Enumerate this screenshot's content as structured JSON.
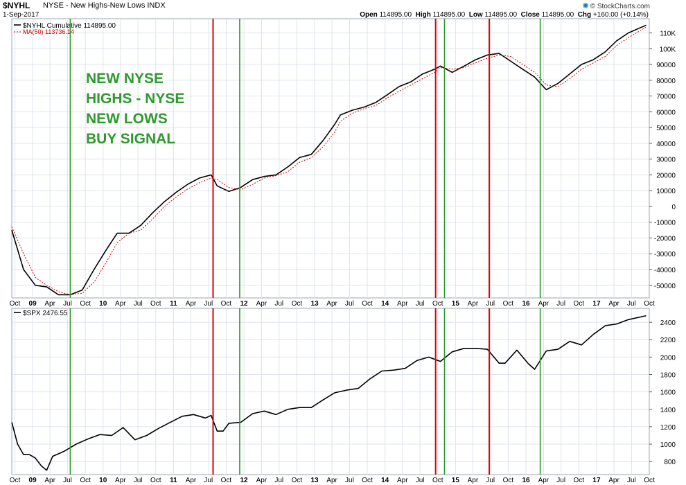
{
  "header": {
    "symbol": "$NYHL",
    "description": "NYSE - New Highs-New Lows INDX",
    "date": "1-Sep-2017",
    "credit": "© StockCharts.com",
    "open_label": "Open",
    "open": "114895.00",
    "high_label": "High",
    "high": "114895.00",
    "low_label": "Low",
    "low": "114895.00",
    "close_label": "Close",
    "close": "114895.00",
    "chg_label": "Chg",
    "chg": "+160.00 (+0.14%)"
  },
  "chart_data": [
    {
      "type": "line",
      "panel": "upper",
      "title": "",
      "annotation_lines": [
        "NEW NYSE",
        "HIGHS - NYSE",
        "NEW LOWS",
        "BUY SIGNAL"
      ],
      "annotation_color": "#2e9a2e",
      "ylim": [
        -58000,
        119000
      ],
      "y_tick_labels": [
        "110K",
        "100K",
        "90000",
        "80000",
        "70000",
        "60000",
        "50000",
        "40000",
        "30000",
        "20000",
        "10000",
        "0",
        "-10000",
        "-20000",
        "-30000",
        "-40000",
        "-50000"
      ],
      "y_tick_values": [
        110000,
        100000,
        90000,
        80000,
        70000,
        60000,
        50000,
        40000,
        30000,
        20000,
        10000,
        0,
        -10000,
        -20000,
        -30000,
        -40000,
        -50000
      ],
      "series": [
        {
          "name": "$NYHL Cumulative 114895.00",
          "color": "#000000",
          "x": [
            "2008-09",
            "2008-11",
            "2009-01",
            "2009-03",
            "2009-05",
            "2009-07",
            "2009-09",
            "2009-11",
            "2010-01",
            "2010-03",
            "2010-05",
            "2010-07",
            "2010-09",
            "2010-11",
            "2011-01",
            "2011-03",
            "2011-05",
            "2011-07",
            "2011-08",
            "2011-10",
            "2011-12",
            "2012-02",
            "2012-04",
            "2012-06",
            "2012-08",
            "2012-10",
            "2012-12",
            "2013-02",
            "2013-04",
            "2013-05",
            "2013-07",
            "2013-09",
            "2013-11",
            "2014-01",
            "2014-03",
            "2014-05",
            "2014-07",
            "2014-09",
            "2014-10",
            "2014-12",
            "2015-02",
            "2015-04",
            "2015-06",
            "2015-08",
            "2015-10",
            "2015-12",
            "2016-02",
            "2016-04",
            "2016-06",
            "2016-08",
            "2016-10",
            "2016-12",
            "2017-02",
            "2017-04",
            "2017-06",
            "2017-09"
          ],
          "y": [
            -15000,
            -40000,
            -50000,
            -51000,
            -56000,
            -56000,
            -53000,
            -40000,
            -28000,
            -17000,
            -17000,
            -12000,
            -4000,
            3000,
            9000,
            14000,
            18000,
            20000,
            13000,
            9500,
            12000,
            17000,
            19000,
            20000,
            25000,
            31000,
            33000,
            42000,
            52000,
            58000,
            61000,
            63000,
            66000,
            71000,
            76000,
            79000,
            84000,
            87000,
            89000,
            85000,
            89000,
            93000,
            96000,
            97000,
            92000,
            87000,
            82000,
            74000,
            78000,
            84000,
            90000,
            93000,
            98000,
            105000,
            110000,
            114895
          ]
        },
        {
          "name": "MA(50) 113736.14",
          "color": "#cc0000",
          "dashed": true,
          "x": [
            "2008-09",
            "2008-11",
            "2009-01",
            "2009-03",
            "2009-05",
            "2009-07",
            "2009-09",
            "2009-11",
            "2010-01",
            "2010-03",
            "2010-05",
            "2010-07",
            "2010-09",
            "2010-11",
            "2011-01",
            "2011-03",
            "2011-05",
            "2011-07",
            "2011-08",
            "2011-10",
            "2011-12",
            "2012-02",
            "2012-04",
            "2012-06",
            "2012-08",
            "2012-10",
            "2012-12",
            "2013-02",
            "2013-04",
            "2013-05",
            "2013-07",
            "2013-09",
            "2013-11",
            "2014-01",
            "2014-03",
            "2014-05",
            "2014-07",
            "2014-09",
            "2014-10",
            "2014-12",
            "2015-02",
            "2015-04",
            "2015-06",
            "2015-08",
            "2015-10",
            "2015-12",
            "2016-02",
            "2016-04",
            "2016-06",
            "2016-08",
            "2016-10",
            "2016-12",
            "2017-02",
            "2017-04",
            "2017-06",
            "2017-09"
          ],
          "y": [
            -13000,
            -30000,
            -45000,
            -50000,
            -54000,
            -56000,
            -55000,
            -48000,
            -36000,
            -23000,
            -17000,
            -15000,
            -8000,
            0,
            6000,
            11000,
            15000,
            18000,
            17000,
            12000,
            10500,
            14000,
            18000,
            19500,
            22000,
            28000,
            31000,
            38000,
            47000,
            54000,
            59000,
            62000,
            64000,
            69000,
            73000,
            77000,
            81000,
            85000,
            88000,
            87000,
            88000,
            91000,
            94000,
            96000,
            95000,
            90000,
            85000,
            77000,
            76000,
            81000,
            87000,
            91000,
            95000,
            102000,
            107000,
            113736
          ]
        }
      ]
    },
    {
      "type": "line",
      "panel": "lower",
      "title": "",
      "ylim": [
        650,
        2560
      ],
      "y_tick_labels": [
        "2400",
        "2200",
        "2000",
        "1800",
        "1600",
        "1400",
        "1200",
        "1000",
        "800"
      ],
      "y_tick_values": [
        2400,
        2200,
        2000,
        1800,
        1600,
        1400,
        1200,
        1000,
        800
      ],
      "series": [
        {
          "name": "$SPX 2476.55",
          "color": "#000000",
          "x": [
            "2008-09",
            "2008-10",
            "2008-11",
            "2008-12",
            "2009-01",
            "2009-02",
            "2009-03",
            "2009-04",
            "2009-06",
            "2009-08",
            "2009-10",
            "2009-12",
            "2010-02",
            "2010-04",
            "2010-06",
            "2010-08",
            "2010-10",
            "2010-12",
            "2011-02",
            "2011-04",
            "2011-06",
            "2011-07",
            "2011-08",
            "2011-09",
            "2011-10",
            "2011-12",
            "2012-02",
            "2012-04",
            "2012-06",
            "2012-08",
            "2012-10",
            "2012-12",
            "2013-02",
            "2013-04",
            "2013-06",
            "2013-08",
            "2013-10",
            "2013-12",
            "2014-02",
            "2014-04",
            "2014-06",
            "2014-08",
            "2014-10",
            "2014-12",
            "2015-02",
            "2015-04",
            "2015-06",
            "2015-08",
            "2015-09",
            "2015-11",
            "2016-01",
            "2016-02",
            "2016-04",
            "2016-06",
            "2016-08",
            "2016-10",
            "2016-12",
            "2017-02",
            "2017-04",
            "2017-06",
            "2017-09"
          ],
          "y": [
            1250,
            1000,
            880,
            880,
            840,
            750,
            700,
            860,
            920,
            1000,
            1060,
            1110,
            1100,
            1190,
            1050,
            1100,
            1180,
            1250,
            1320,
            1340,
            1300,
            1330,
            1150,
            1150,
            1240,
            1250,
            1350,
            1380,
            1340,
            1400,
            1420,
            1420,
            1510,
            1590,
            1620,
            1640,
            1750,
            1840,
            1850,
            1870,
            1960,
            2000,
            1950,
            2060,
            2100,
            2100,
            2090,
            1930,
            1930,
            2080,
            1920,
            1860,
            2070,
            2090,
            2180,
            2140,
            2260,
            2360,
            2380,
            2430,
            2476
          ]
        }
      ]
    }
  ],
  "signal_lines": [
    {
      "date": "2009-07-15",
      "color": "green"
    },
    {
      "date": "2011-07-25",
      "color": "red"
    },
    {
      "date": "2011-12-10",
      "color": "green"
    },
    {
      "date": "2014-09-20",
      "color": "red"
    },
    {
      "date": "2014-11-05",
      "color": "green"
    },
    {
      "date": "2015-06-25",
      "color": "red"
    },
    {
      "date": "2016-03-15",
      "color": "green"
    }
  ],
  "x_axis": {
    "start": "2008-09-15",
    "end": "2017-10-01",
    "tick_labels": [
      {
        "date": "2008-10-01",
        "label": "Oct"
      },
      {
        "date": "2009-01-01",
        "label": "09"
      },
      {
        "date": "2009-04-01",
        "label": "Apr"
      },
      {
        "date": "2009-07-01",
        "label": "Jul"
      },
      {
        "date": "2009-10-01",
        "label": "Oct"
      },
      {
        "date": "2010-01-01",
        "label": "10"
      },
      {
        "date": "2010-04-01",
        "label": "Apr"
      },
      {
        "date": "2010-07-01",
        "label": "Jul"
      },
      {
        "date": "2010-10-01",
        "label": "Oct"
      },
      {
        "date": "2011-01-01",
        "label": "11"
      },
      {
        "date": "2011-04-01",
        "label": "Apr"
      },
      {
        "date": "2011-07-01",
        "label": "Jul"
      },
      {
        "date": "2011-10-01",
        "label": "Oct"
      },
      {
        "date": "2012-01-01",
        "label": "12"
      },
      {
        "date": "2012-04-01",
        "label": "Apr"
      },
      {
        "date": "2012-07-01",
        "label": "Jul"
      },
      {
        "date": "2012-10-01",
        "label": "Oct"
      },
      {
        "date": "2013-01-01",
        "label": "13"
      },
      {
        "date": "2013-04-01",
        "label": "Apr"
      },
      {
        "date": "2013-07-01",
        "label": "Jul"
      },
      {
        "date": "2013-10-01",
        "label": "Oct"
      },
      {
        "date": "2014-01-01",
        "label": "14"
      },
      {
        "date": "2014-04-01",
        "label": "Apr"
      },
      {
        "date": "2014-07-01",
        "label": "Jul"
      },
      {
        "date": "2014-10-01",
        "label": "Oct"
      },
      {
        "date": "2015-01-01",
        "label": "15"
      },
      {
        "date": "2015-04-01",
        "label": "Apr"
      },
      {
        "date": "2015-07-01",
        "label": "Jul"
      },
      {
        "date": "2015-10-01",
        "label": "Oct"
      },
      {
        "date": "2016-01-01",
        "label": "16"
      },
      {
        "date": "2016-04-01",
        "label": "Apr"
      },
      {
        "date": "2016-07-01",
        "label": "Jul"
      },
      {
        "date": "2016-10-01",
        "label": "Oct"
      },
      {
        "date": "2017-01-01",
        "label": "17"
      },
      {
        "date": "2017-04-01",
        "label": "Apr"
      },
      {
        "date": "2017-07-01",
        "label": "Jul"
      },
      {
        "date": "2017-10-01",
        "label": "Oct"
      }
    ]
  },
  "colors": {
    "signal_red": "#e00000",
    "signal_green": "#2a9a2a",
    "grid": "#dde3ec",
    "panel_border": "#9aa4b0"
  }
}
